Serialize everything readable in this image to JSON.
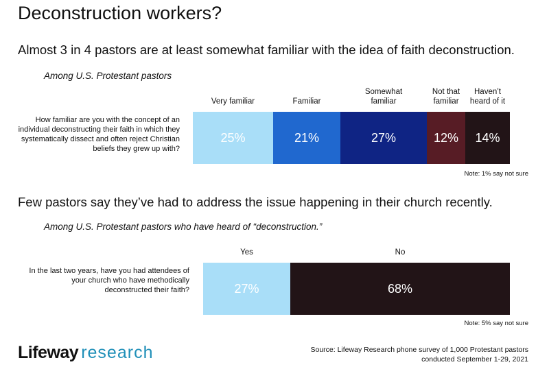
{
  "title": "Deconstruction workers?",
  "chart_data": [
    {
      "type": "bar",
      "orientation": "horizontal-stacked",
      "headline": "Almost 3 in 4 pastors are at least somewhat familiar with the idea of faith deconstruction.",
      "subtitle": "Among U.S. Protestant pastors",
      "question": "How familiar are you with the concept of an individual deconstructing their faith in which they systematically dissect and often reject Christian beliefs they grew up with?",
      "categories": [
        "Very familiar",
        "Familiar",
        "Somewhat familiar",
        "Not that familiar",
        "Haven’t heard of it"
      ],
      "header_lines": [
        [
          "Very familiar"
        ],
        [
          "Familiar"
        ],
        [
          "Somewhat",
          "familiar"
        ],
        [
          "Not that",
          "familiar"
        ],
        [
          "Haven’t",
          "heard of it"
        ]
      ],
      "values": [
        25,
        21,
        27,
        12,
        14
      ],
      "value_labels": [
        "25%",
        "21%",
        "27%",
        "12%",
        "14%"
      ],
      "colors": [
        "#a9def8",
        "#2068cf",
        "#0f2484",
        "#571c25",
        "#221417"
      ],
      "label_colors": [
        "#ffffff",
        "#ffffff",
        "#ffffff",
        "#ffffff",
        "#ffffff"
      ],
      "note": "Note: 1% say not sure"
    },
    {
      "type": "bar",
      "orientation": "horizontal-stacked",
      "headline": "Few pastors say they’ve had to address the issue happening in their church recently.",
      "subtitle": "Among U.S. Protestant pastors who have heard of “deconstruction.”",
      "question": "In the last two years, have you had attendees of your church who have methodically deconstructed their faith?",
      "categories": [
        "Yes",
        "No"
      ],
      "header_lines": [
        [
          "Yes"
        ],
        [
          "No"
        ]
      ],
      "values": [
        27,
        68
      ],
      "value_labels": [
        "27%",
        "68%"
      ],
      "colors": [
        "#a9def8",
        "#221417"
      ],
      "label_colors": [
        "#ffffff",
        "#ffffff"
      ],
      "note": "Note: 5% say not sure"
    }
  ],
  "logo": {
    "part1": "Lifeway",
    "part2": "research"
  },
  "source": {
    "line1": "Source: Lifeway Research phone survey of 1,000 Protestant pastors",
    "line2": "conducted September 1-29, 2021"
  }
}
